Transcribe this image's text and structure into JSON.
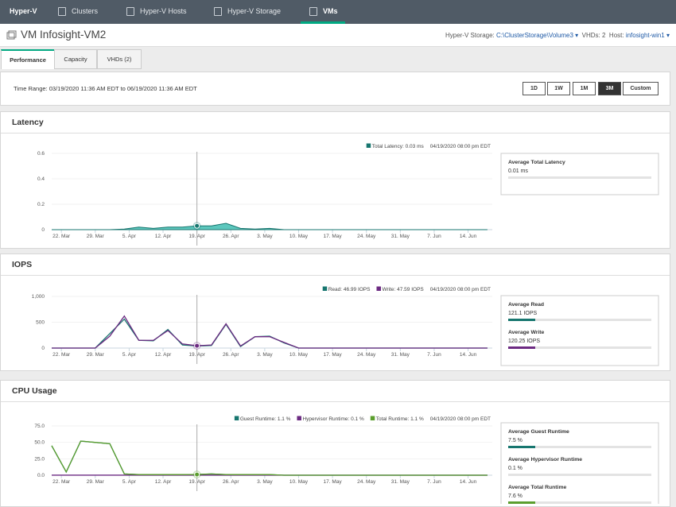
{
  "nav": {
    "brand": "Hyper-V",
    "items": [
      "Clusters",
      "Hyper-V Hosts",
      "Hyper-V Storage",
      "VMs"
    ]
  },
  "header": {
    "title": "VM Infosight-VM2",
    "storage_label": "Hyper-V Storage:",
    "storage_value": "C:\\ClusterStorage\\Volume3",
    "vhds_label": "VHDs:",
    "vhds_value": "2",
    "host_label": "Host:",
    "host_value": "infosight-win1"
  },
  "tabs": [
    "Performance",
    "Capacity",
    "VHDs (2)"
  ],
  "time_range": {
    "text": "Time Range: 03/19/2020 11:36 AM EDT to 06/19/2020 11:36 AM EDT",
    "buttons": [
      "1D",
      "1W",
      "1M",
      "3M",
      "Custom"
    ]
  },
  "chart_data": [
    {
      "type": "area",
      "title": "Latency",
      "x": [
        "2020-03-20",
        "2020-03-23",
        "2020-03-26",
        "2020-03-29",
        "2020-04-01",
        "2020-04-04",
        "2020-04-07",
        "2020-04-10",
        "2020-04-13",
        "2020-04-16",
        "2020-04-19",
        "2020-04-22",
        "2020-04-25",
        "2020-04-28",
        "2020-05-01",
        "2020-05-04",
        "2020-05-07",
        "2020-05-10",
        "2020-05-13",
        "2020-05-16",
        "2020-05-19",
        "2020-05-22",
        "2020-05-25",
        "2020-05-28",
        "2020-05-31",
        "2020-06-03",
        "2020-06-06",
        "2020-06-09",
        "2020-06-12",
        "2020-06-15",
        "2020-06-18"
      ],
      "xlim": [
        "2020-03-20",
        "2020-06-19"
      ],
      "xticks": [
        {
          "value": "2020-03-22",
          "label": "22. Mar"
        },
        {
          "value": "2020-03-29",
          "label": "29. Mar"
        },
        {
          "value": "2020-04-05",
          "label": "5. Apr"
        },
        {
          "value": "2020-04-12",
          "label": "12. Apr"
        },
        {
          "value": "2020-04-19",
          "label": "19. Apr"
        },
        {
          "value": "2020-04-26",
          "label": "26. Apr"
        },
        {
          "value": "2020-05-03",
          "label": "3. May"
        },
        {
          "value": "2020-05-10",
          "label": "10. May"
        },
        {
          "value": "2020-05-17",
          "label": "17. May"
        },
        {
          "value": "2020-05-24",
          "label": "24. May"
        },
        {
          "value": "2020-05-31",
          "label": "31. May"
        },
        {
          "value": "2020-06-07",
          "label": "7. Jun"
        },
        {
          "value": "2020-06-14",
          "label": "14. Jun"
        }
      ],
      "ylim": [
        0,
        0.6
      ],
      "yticks": [
        0,
        0.2,
        0.4,
        0.6
      ],
      "series": [
        {
          "name": "Total Latency: 0.03 ms",
          "color": "#17766f",
          "values": [
            0,
            0,
            0,
            0,
            0,
            0.005,
            0.02,
            0.01,
            0.02,
            0.02,
            0.03,
            0.03,
            0.05,
            0.01,
            0.005,
            0.01,
            0,
            0,
            0,
            0,
            0,
            0,
            0,
            0,
            0,
            0,
            0,
            0,
            0,
            0,
            0
          ]
        }
      ],
      "cursor_x": "2020-04-19",
      "tooltip_date": "04/19/2020 08:00 pm EDT",
      "stats": [
        {
          "label": "Average Total Latency",
          "value": "0.01 ms"
        }
      ]
    },
    {
      "type": "line",
      "title": "IOPS",
      "x": [
        "2020-03-20",
        "2020-03-23",
        "2020-03-26",
        "2020-03-29",
        "2020-04-01",
        "2020-04-04",
        "2020-04-07",
        "2020-04-10",
        "2020-04-13",
        "2020-04-16",
        "2020-04-19",
        "2020-04-22",
        "2020-04-25",
        "2020-04-28",
        "2020-05-01",
        "2020-05-04",
        "2020-05-07",
        "2020-05-10",
        "2020-05-13",
        "2020-05-16",
        "2020-05-19",
        "2020-05-22",
        "2020-05-25",
        "2020-05-28",
        "2020-05-31",
        "2020-06-03",
        "2020-06-06",
        "2020-06-09",
        "2020-06-12",
        "2020-06-15",
        "2020-06-18"
      ],
      "xlim": [
        "2020-03-20",
        "2020-06-19"
      ],
      "xticks": [
        {
          "value": "2020-03-22",
          "label": "22. Mar"
        },
        {
          "value": "2020-03-29",
          "label": "29. Mar"
        },
        {
          "value": "2020-04-05",
          "label": "5. Apr"
        },
        {
          "value": "2020-04-12",
          "label": "12. Apr"
        },
        {
          "value": "2020-04-19",
          "label": "19. Apr"
        },
        {
          "value": "2020-04-26",
          "label": "26. Apr"
        },
        {
          "value": "2020-05-03",
          "label": "3. May"
        },
        {
          "value": "2020-05-10",
          "label": "10. May"
        },
        {
          "value": "2020-05-17",
          "label": "17. May"
        },
        {
          "value": "2020-05-24",
          "label": "24. May"
        },
        {
          "value": "2020-05-31",
          "label": "31. May"
        },
        {
          "value": "2020-06-07",
          "label": "7. Jun"
        },
        {
          "value": "2020-06-14",
          "label": "14. Jun"
        }
      ],
      "ylim": [
        0,
        1000
      ],
      "yticks": [
        0,
        500,
        {
          "value": 1000,
          "label": "1,000"
        }
      ],
      "series": [
        {
          "name": "Read: 46.99 IOPS",
          "color": "#17766f",
          "values": [
            0,
            0,
            0,
            0,
            280,
            560,
            150,
            140,
            360,
            60,
            40,
            50,
            460,
            30,
            220,
            230,
            100,
            0,
            0,
            0,
            0,
            0,
            0,
            0,
            0,
            0,
            0,
            0,
            0,
            0,
            0
          ]
        },
        {
          "name": "Write: 47.59 IOPS",
          "color": "#6c2a82",
          "values": [
            0,
            0,
            0,
            0,
            230,
            620,
            150,
            150,
            340,
            80,
            45,
            60,
            470,
            40,
            220,
            220,
            110,
            0,
            0,
            0,
            0,
            0,
            0,
            0,
            0,
            0,
            0,
            0,
            0,
            0,
            0
          ]
        }
      ],
      "cursor_x": "2020-04-19",
      "tooltip_date": "04/19/2020 08:00 pm EDT",
      "stats": [
        {
          "label": "Average Read",
          "value": "121.1 IOPS",
          "color": "#17766f"
        },
        {
          "label": "Average Write",
          "value": "120.25 IOPS",
          "color": "#6c2a82"
        }
      ]
    },
    {
      "type": "line",
      "title": "CPU Usage",
      "x": [
        "2020-03-20",
        "2020-03-23",
        "2020-03-26",
        "2020-03-29",
        "2020-04-01",
        "2020-04-04",
        "2020-04-07",
        "2020-04-10",
        "2020-04-13",
        "2020-04-16",
        "2020-04-19",
        "2020-04-22",
        "2020-04-25",
        "2020-04-28",
        "2020-05-01",
        "2020-05-04",
        "2020-05-07",
        "2020-05-10",
        "2020-05-13",
        "2020-05-16",
        "2020-05-19",
        "2020-05-22",
        "2020-05-25",
        "2020-05-28",
        "2020-05-31",
        "2020-06-03",
        "2020-06-06",
        "2020-06-09",
        "2020-06-12",
        "2020-06-15",
        "2020-06-18"
      ],
      "xlim": [
        "2020-03-20",
        "2020-06-19"
      ],
      "xticks": [
        {
          "value": "2020-03-22",
          "label": "22. Mar"
        },
        {
          "value": "2020-03-29",
          "label": "29. Mar"
        },
        {
          "value": "2020-04-05",
          "label": "5. Apr"
        },
        {
          "value": "2020-04-12",
          "label": "12. Apr"
        },
        {
          "value": "2020-04-19",
          "label": "19. Apr"
        },
        {
          "value": "2020-04-26",
          "label": "26. Apr"
        },
        {
          "value": "2020-05-03",
          "label": "3. May"
        },
        {
          "value": "2020-05-10",
          "label": "10. May"
        },
        {
          "value": "2020-05-17",
          "label": "17. May"
        },
        {
          "value": "2020-05-24",
          "label": "24. May"
        },
        {
          "value": "2020-05-31",
          "label": "31. May"
        },
        {
          "value": "2020-06-07",
          "label": "7. Jun"
        },
        {
          "value": "2020-06-14",
          "label": "14. Jun"
        }
      ],
      "ylim": [
        0,
        75
      ],
      "yticks": [
        {
          "value": 0,
          "label": "0.0"
        },
        {
          "value": 25,
          "label": "25.0"
        },
        {
          "value": 50,
          "label": "50.0"
        },
        {
          "value": 75,
          "label": "75.0"
        }
      ],
      "series": [
        {
          "name": "Guest Runtime: 1.1 %",
          "color": "#17766f",
          "values": [
            44.9,
            4.9,
            51.9,
            49.9,
            47.9,
            1.9,
            0.9,
            0.9,
            0.9,
            0.9,
            1.1,
            1.9,
            0.9,
            0.9,
            0.9,
            0.9,
            0,
            0,
            0,
            0,
            0,
            0,
            0,
            0,
            0,
            0,
            0,
            0,
            0,
            0,
            0
          ]
        },
        {
          "name": "Hypervisor Runtime: 0.1 %",
          "color": "#6c2a82",
          "values": [
            0.1,
            0.1,
            0.1,
            0.1,
            0.1,
            0.1,
            0.1,
            0.1,
            0.1,
            0.1,
            0.1,
            0.1,
            0.1,
            0.1,
            0.1,
            0.1,
            0,
            0,
            0,
            0,
            0,
            0,
            0,
            0,
            0,
            0,
            0,
            0,
            0,
            0,
            0
          ]
        },
        {
          "name": "Total Runtime: 1.1 %",
          "color": "#5b9e2d",
          "values": [
            45,
            5,
            52,
            50,
            48,
            2,
            1,
            1,
            1,
            1,
            1.1,
            2,
            1,
            1,
            1,
            1,
            0,
            0,
            0,
            0,
            0,
            0,
            0,
            0,
            0,
            0,
            0,
            0,
            0,
            0,
            0
          ]
        }
      ],
      "cursor_x": "2020-04-19",
      "tooltip_date": "04/19/2020 08:00 pm EDT",
      "stats": [
        {
          "label": "Average Guest Runtime",
          "value": "7.5 %",
          "color": "#17766f"
        },
        {
          "label": "Average Hypervisor Runtime",
          "value": "0.1 %"
        },
        {
          "label": "Average Total Runtime",
          "value": "7.6 %",
          "color": "#5b9e2d"
        }
      ]
    }
  ]
}
